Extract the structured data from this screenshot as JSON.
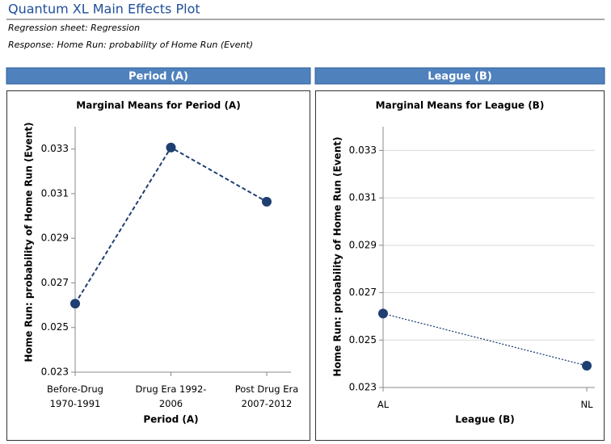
{
  "header": {
    "title": "Quantum XL Main Effects Plot",
    "sheet": "Regression sheet: Regression",
    "response": "Response: Home Run: probability of Home Run (Event)"
  },
  "panels": [
    "Period (A)",
    "League (B)"
  ],
  "chart_data": [
    {
      "type": "line",
      "title": "Marginal Means for Period (A)",
      "x_label": "Period (A)",
      "y_label": "Home Run: probability of Home Run (Event)",
      "categories": [
        "Before-Drug 1970-1991",
        "Drug Era 1992-2006",
        "Post Drug Era 2007-2012"
      ],
      "values": [
        0.02607,
        0.03307,
        0.03064
      ],
      "color": "#1f3f73",
      "line_style": "dashed",
      "ylim": [
        0.023,
        0.034
      ],
      "yticks": [
        0.023,
        0.025,
        0.027,
        0.029,
        0.031,
        0.033
      ],
      "grid": false
    },
    {
      "type": "line",
      "title": "Marginal Means for League (B)",
      "x_label": "League (B)",
      "y_label": "Home Run: probability of Home Run (Event)",
      "categories": [
        "AL",
        "NL"
      ],
      "values": [
        0.02612,
        0.02392
      ],
      "color": "#1f3f73",
      "line_style": "dotted",
      "ylim": [
        0.023,
        0.034
      ],
      "yticks": [
        0.023,
        0.025,
        0.027,
        0.029,
        0.031,
        0.033
      ],
      "grid": true
    }
  ]
}
